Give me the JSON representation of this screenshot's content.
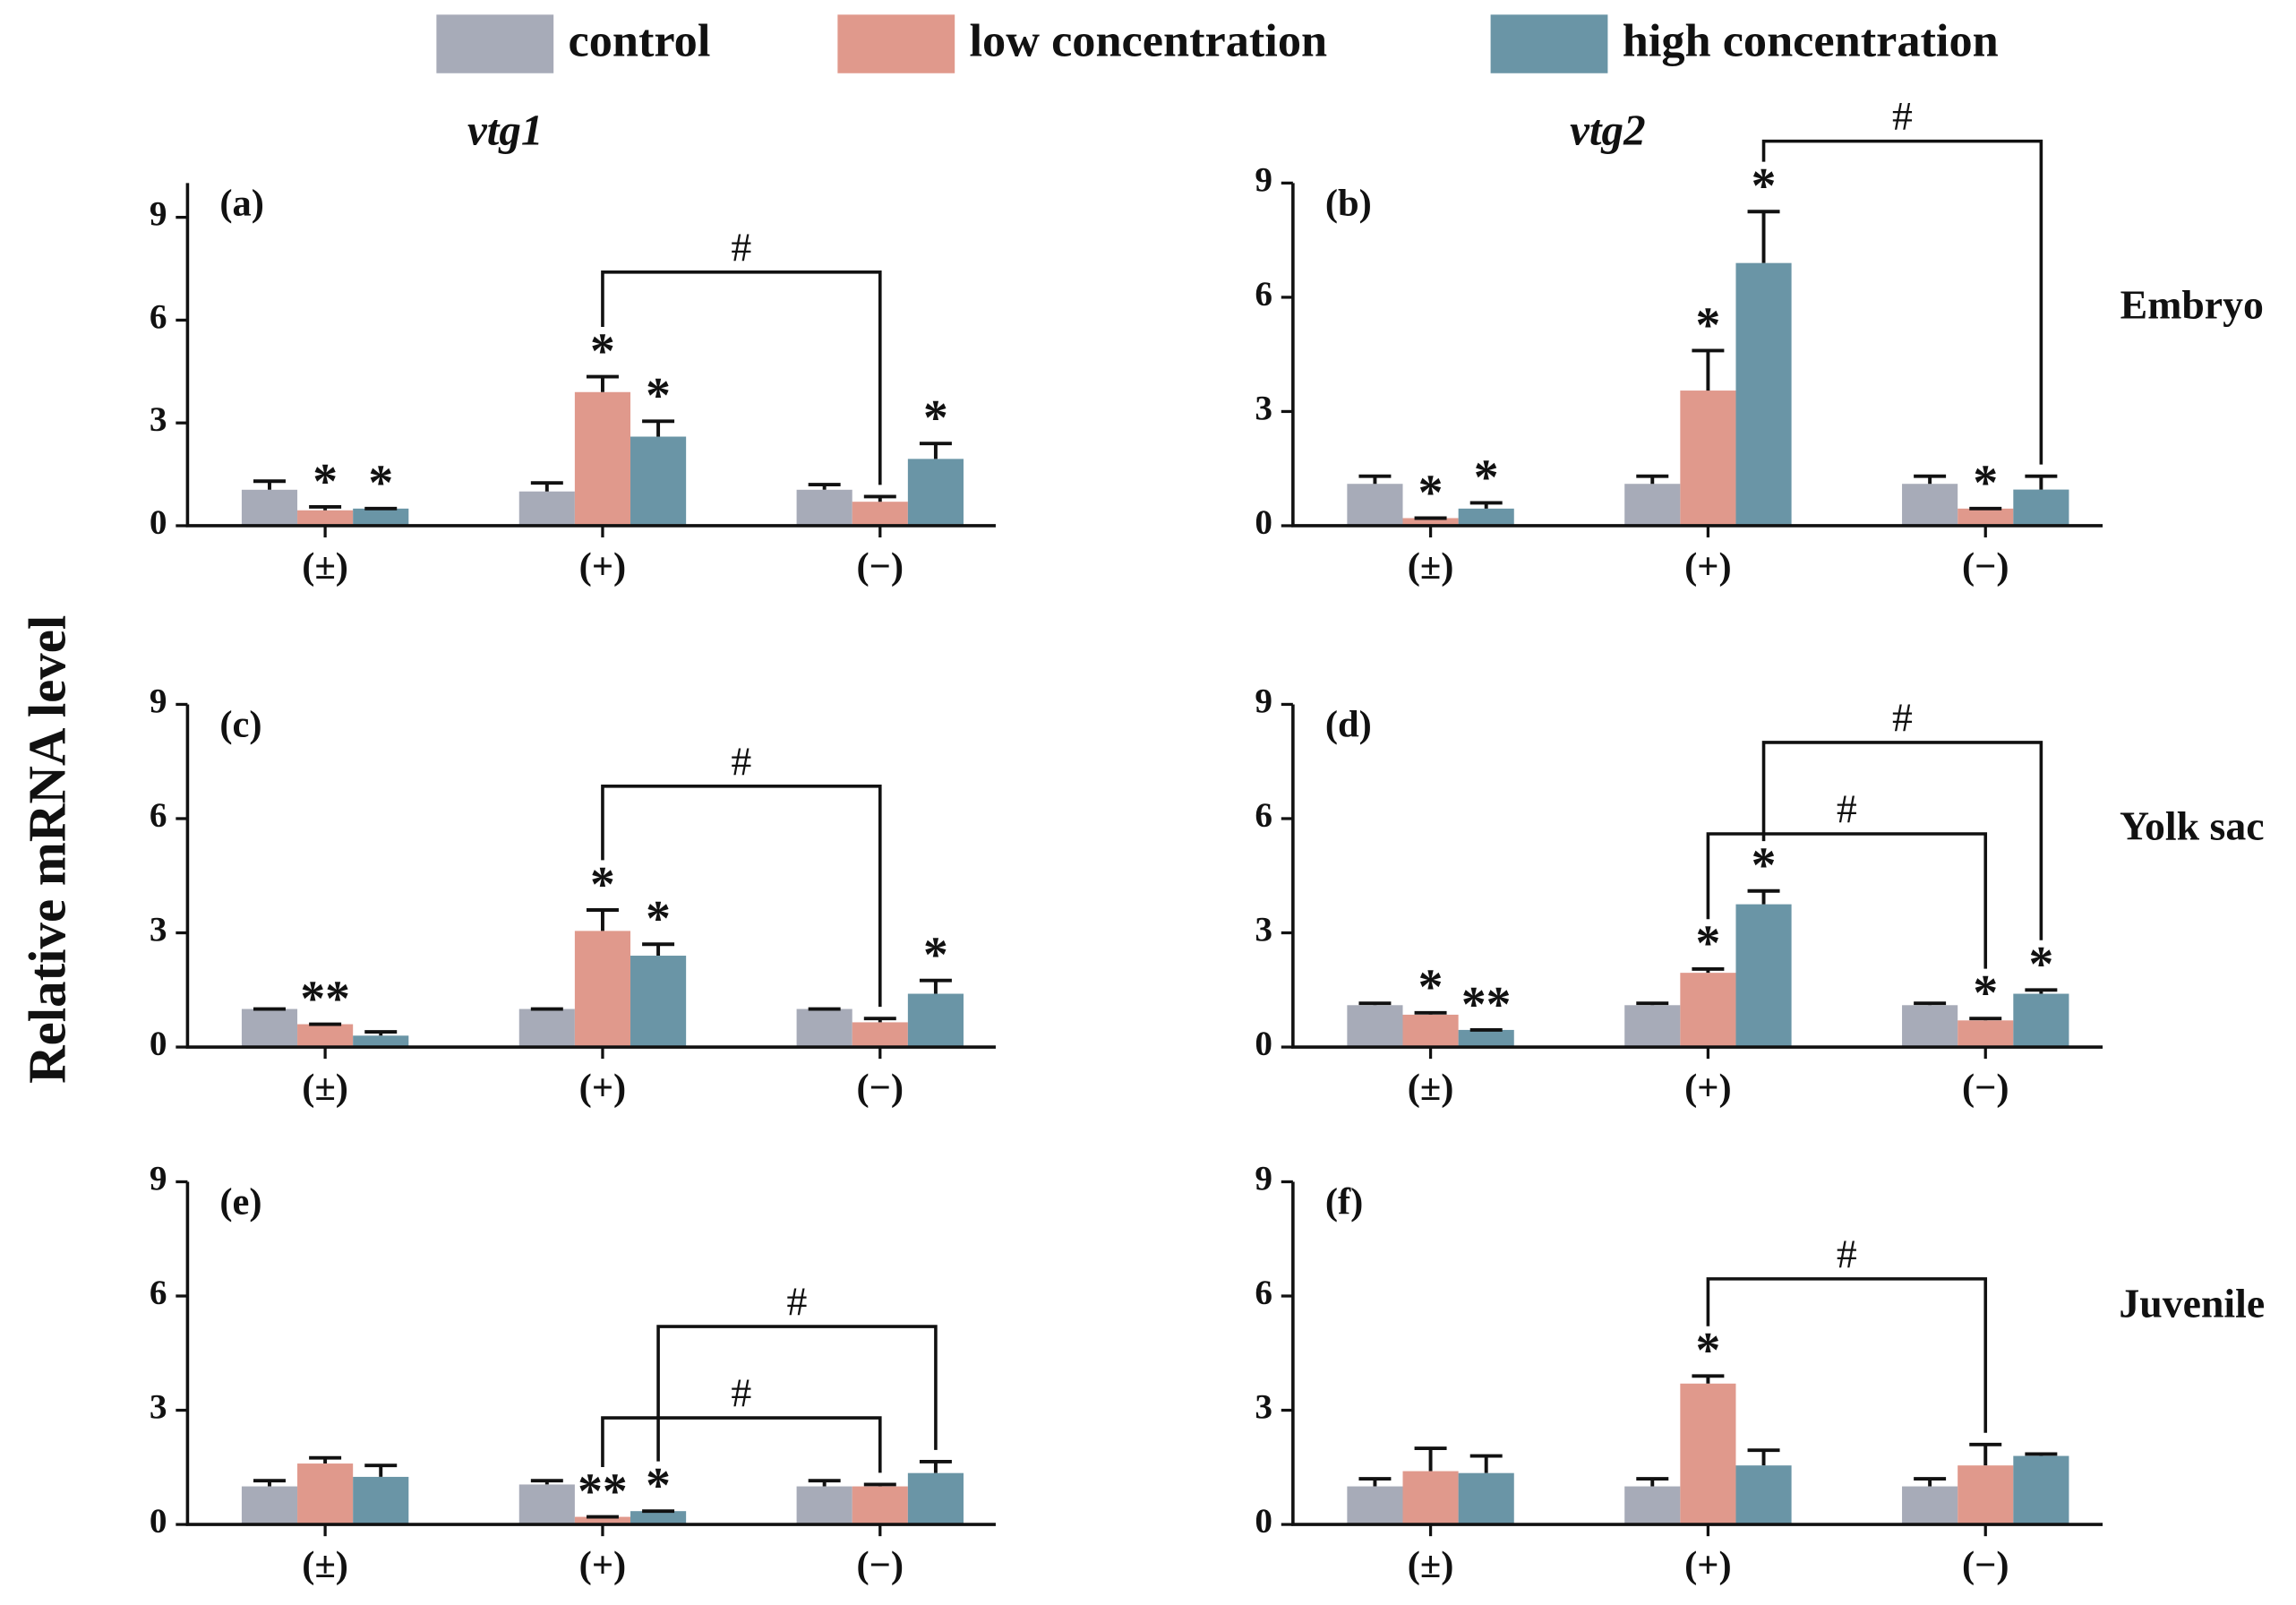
{
  "chart_data": [
    {
      "type": "bar",
      "title": "vtg1",
      "label": "(a)",
      "ylabel": "Relative mRNA level",
      "categories": [
        "(±)",
        "(+)",
        "(−)"
      ],
      "ylim": [
        0,
        10
      ],
      "yticks": [
        0,
        3,
        6,
        9
      ],
      "series": [
        {
          "name": "control",
          "color": "#a7abb8",
          "values": [
            1.05,
            1.0,
            1.05
          ],
          "errors": [
            0.25,
            0.25,
            0.15
          ],
          "stars": [
            null,
            null,
            null
          ]
        },
        {
          "name": "low concentration",
          "color": "#e0998c",
          "values": [
            0.45,
            3.9,
            0.7
          ],
          "errors": [
            0.1,
            0.45,
            0.15
          ],
          "stars": [
            "*",
            "*",
            null
          ]
        },
        {
          "name": "high concentration",
          "color": "#6a95a6",
          "values": [
            0.5,
            2.6,
            1.95
          ],
          "errors": [
            0,
            0.45,
            0.45
          ],
          "stars": [
            "*",
            "*",
            "*"
          ]
        }
      ],
      "brackets": [
        {
          "label": "#",
          "y": 7.4,
          "from": {
            "series": 1,
            "category": 1
          },
          "to": {
            "series": 1,
            "category": 2
          }
        }
      ]
    },
    {
      "type": "bar",
      "title": "vtg2",
      "label": "(b)",
      "row_label": "Embryo",
      "categories": [
        "(±)",
        "(+)",
        "(−)"
      ],
      "ylim": [
        0,
        9
      ],
      "yticks": [
        0,
        3,
        6,
        9
      ],
      "series": [
        {
          "color": "#a7abb8",
          "values": [
            1.1,
            1.1,
            1.1
          ],
          "errors": [
            0.2,
            0.2,
            0.2
          ],
          "stars": [
            null,
            null,
            null
          ]
        },
        {
          "color": "#e0998c",
          "values": [
            0.2,
            3.55,
            0.45
          ],
          "errors": [
            0,
            1.05,
            0
          ],
          "stars": [
            "*",
            "*",
            "*"
          ]
        },
        {
          "color": "#6a95a6",
          "values": [
            0.45,
            6.9,
            0.95
          ],
          "errors": [
            0.15,
            1.35,
            0.35
          ],
          "stars": [
            "*",
            "*",
            null
          ]
        }
      ],
      "brackets": [
        {
          "label": "#",
          "y": 10.1,
          "from": {
            "series": 2,
            "category": 1
          },
          "to": {
            "series": 2,
            "category": 2
          }
        }
      ]
    },
    {
      "type": "bar",
      "label": "(c)",
      "categories": [
        "(±)",
        "(+)",
        "(−)"
      ],
      "ylim": [
        0,
        9
      ],
      "yticks": [
        0,
        3,
        6,
        9
      ],
      "series": [
        {
          "color": "#a7abb8",
          "values": [
            1.0,
            1.0,
            1.0
          ],
          "errors": [
            0,
            0,
            0
          ],
          "stars": [
            null,
            null,
            null
          ]
        },
        {
          "color": "#e0998c",
          "values": [
            0.6,
            3.05,
            0.65
          ],
          "errors": [
            0,
            0.55,
            0.1
          ],
          "stars": [
            "**",
            "*",
            null
          ]
        },
        {
          "color": "#6a95a6",
          "values": [
            0.3,
            2.4,
            1.4
          ],
          "errors": [
            0.1,
            0.3,
            0.35
          ],
          "stars": [
            null,
            "*",
            "*"
          ]
        }
      ],
      "brackets": [
        {
          "label": "#",
          "y": 6.85,
          "from": {
            "series": 1,
            "category": 1
          },
          "to": {
            "series": 1,
            "category": 2
          }
        }
      ]
    },
    {
      "type": "bar",
      "label": "(d)",
      "row_label": "Yolk sac",
      "categories": [
        "(±)",
        "(+)",
        "(−)"
      ],
      "ylim": [
        0,
        9
      ],
      "yticks": [
        0,
        3,
        6,
        9
      ],
      "series": [
        {
          "color": "#a7abb8",
          "values": [
            1.1,
            1.1,
            1.1
          ],
          "errors": [
            0.05,
            0.05,
            0.05
          ],
          "stars": [
            null,
            null,
            null
          ]
        },
        {
          "color": "#e0998c",
          "values": [
            0.85,
            1.95,
            0.7
          ],
          "errors": [
            0.05,
            0.1,
            0.05
          ],
          "stars": [
            "*",
            "*",
            "*"
          ]
        },
        {
          "color": "#6a95a6",
          "values": [
            0.45,
            3.75,
            1.4
          ],
          "errors": [
            0,
            0.35,
            0.1
          ],
          "stars": [
            "**",
            "*",
            "*"
          ]
        }
      ],
      "brackets": [
        {
          "label": "#",
          "y": 5.6,
          "from": {
            "series": 1,
            "category": 1
          },
          "to": {
            "series": 1,
            "category": 2
          }
        },
        {
          "label": "#",
          "y": 8.0,
          "from": {
            "series": 2,
            "category": 1
          },
          "to": {
            "series": 2,
            "category": 2
          }
        }
      ]
    },
    {
      "type": "bar",
      "label": "(e)",
      "categories": [
        "(±)",
        "(+)",
        "(−)"
      ],
      "ylim": [
        0,
        9
      ],
      "yticks": [
        0,
        3,
        6,
        9
      ],
      "series": [
        {
          "color": "#a7abb8",
          "values": [
            1.0,
            1.05,
            1.0
          ],
          "errors": [
            0.15,
            0.1,
            0.15
          ],
          "stars": [
            null,
            null,
            null
          ]
        },
        {
          "color": "#e0998c",
          "values": [
            1.6,
            0.2,
            1.0
          ],
          "errors": [
            0.15,
            0,
            0.05
          ],
          "stars": [
            null,
            "**",
            null
          ]
        },
        {
          "color": "#6a95a6",
          "values": [
            1.25,
            0.35,
            1.35
          ],
          "errors": [
            0.3,
            0,
            0.3
          ],
          "stars": [
            null,
            "*",
            null
          ]
        }
      ],
      "brackets": [
        {
          "label": "#",
          "y": 2.8,
          "from": {
            "series": 1,
            "category": 1
          },
          "to": {
            "series": 1,
            "category": 2
          }
        },
        {
          "label": "#",
          "y": 5.2,
          "from": {
            "series": 2,
            "category": 1
          },
          "to": {
            "series": 2,
            "category": 2
          }
        }
      ]
    },
    {
      "type": "bar",
      "label": "(f)",
      "row_label": "Juvenile",
      "categories": [
        "(±)",
        "(+)",
        "(−)"
      ],
      "ylim": [
        0,
        9
      ],
      "yticks": [
        0,
        3,
        6,
        9
      ],
      "series": [
        {
          "color": "#a7abb8",
          "values": [
            1.0,
            1.0,
            1.0
          ],
          "errors": [
            0.2,
            0.2,
            0.2
          ],
          "stars": [
            null,
            null,
            null
          ]
        },
        {
          "color": "#e0998c",
          "values": [
            1.4,
            3.7,
            1.55
          ],
          "errors": [
            0.6,
            0.2,
            0.55
          ],
          "stars": [
            null,
            "*",
            null
          ]
        },
        {
          "color": "#6a95a6",
          "values": [
            1.35,
            1.55,
            1.8
          ],
          "errors": [
            0.45,
            0.4,
            0.05
          ],
          "stars": [
            null,
            null,
            null
          ]
        }
      ],
      "brackets": [
        {
          "label": "#",
          "y": 6.45,
          "from": {
            "series": 1,
            "category": 1
          },
          "to": {
            "series": 1,
            "category": 2
          }
        }
      ]
    }
  ]
}
